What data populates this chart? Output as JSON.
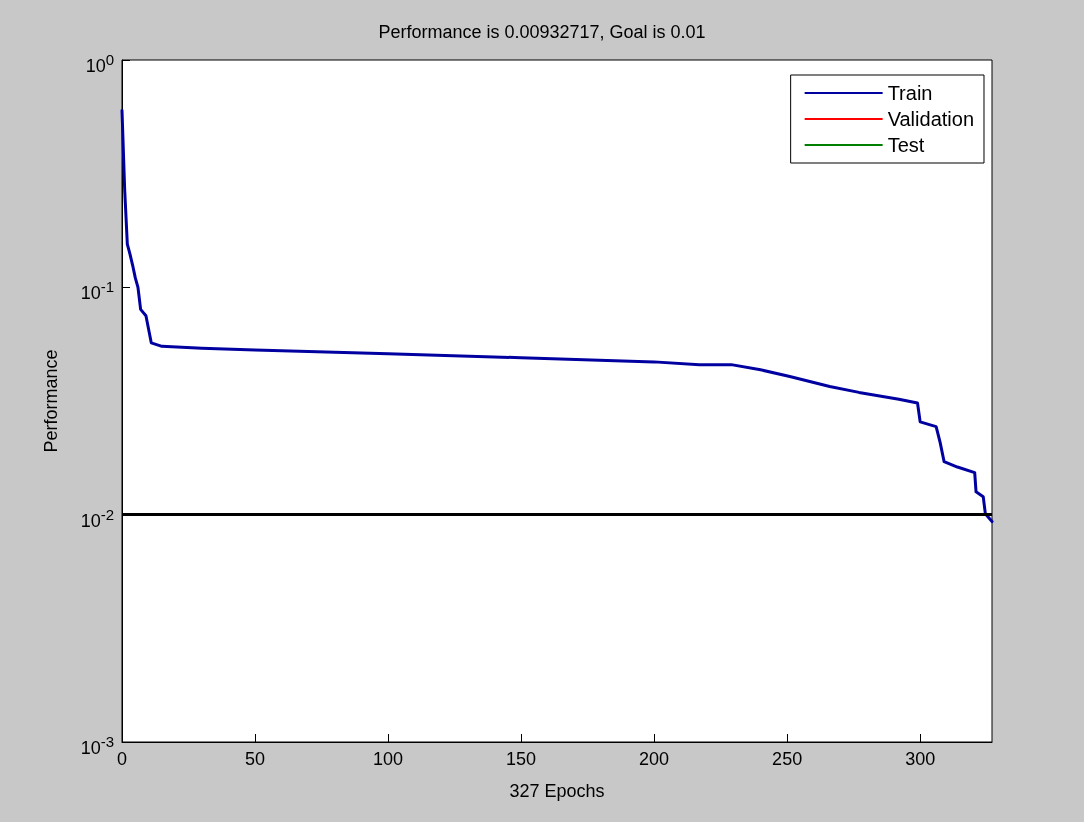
{
  "chart_data": {
    "type": "line",
    "title": "Performance is 0.00932717, Goal is 0.01",
    "xlabel": "327 Epochs",
    "ylabel": "Performance",
    "xlim": [
      0,
      327
    ],
    "xticks": [
      0,
      50,
      100,
      150,
      200,
      250,
      300
    ],
    "ylim": [
      0.001,
      1
    ],
    "yticks": [
      {
        "value": 0.001,
        "label": "10$^{-3}$"
      },
      {
        "value": 0.01,
        "label": "10$^{-2}$"
      },
      {
        "value": 0.1,
        "label": "10$^{-1}$"
      },
      {
        "value": 1,
        "label": "10$^{0}$"
      }
    ],
    "log": "y",
    "grid": false,
    "legend": "top right",
    "marker": "none",
    "line_style": "solid",
    "series": [
      {
        "name": "Train",
        "color": "#0000a0",
        "x": [
          0,
          1,
          2,
          3,
          4,
          5,
          6,
          7,
          9,
          11,
          15,
          30,
          50,
          100,
          150,
          200,
          217,
          229,
          240,
          251,
          266,
          277,
          292,
          299,
          300,
          306,
          307.5,
          309,
          314,
          320.5,
          321,
          323.7,
          324.5,
          327
        ],
        "values": [
          0.6,
          0.27,
          0.155,
          0.14,
          0.125,
          0.11,
          0.1,
          0.08,
          0.075,
          0.057,
          0.055,
          0.054,
          0.053,
          0.051,
          0.049,
          0.047,
          0.0457,
          0.0457,
          0.0434,
          0.0405,
          0.0366,
          0.0345,
          0.0322,
          0.031,
          0.0256,
          0.0244,
          0.0208,
          0.0171,
          0.0162,
          0.0153,
          0.0126,
          0.012,
          0.0101,
          0.00932717
        ]
      },
      {
        "name": "Validation",
        "color": "#ff0000"
      },
      {
        "name": "Test",
        "color": "#008000"
      }
    ],
    "ref_lines": [
      {
        "axis": "y",
        "value": 0.01,
        "color": "#000000",
        "line_style": "solid"
      }
    ]
  }
}
